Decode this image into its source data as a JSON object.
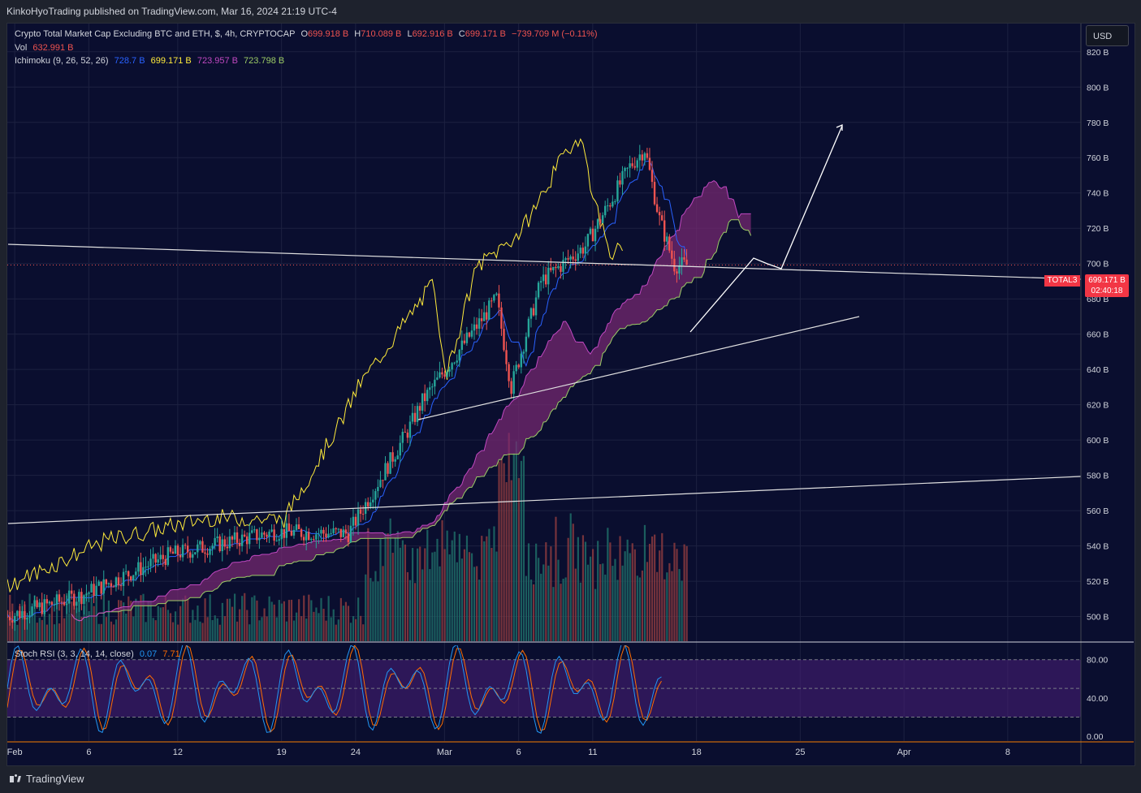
{
  "header": {
    "published": "KinkoHyoTrading published on TradingView.com, Mar 16, 2024 21:19 UTC-4"
  },
  "legend": {
    "title": "Crypto Total Market Cap Excluding BTC and ETH, $, 4h, CRYPTOCAP",
    "o_label": "O",
    "o_value": "699.918 B",
    "h_label": "H",
    "h_value": "710.089 B",
    "l_label": "L",
    "l_value": "692.916 B",
    "c_label": "C",
    "c_value": "699.171 B",
    "change": "−739.709 M (−0.11%)",
    "vol_label": "Vol",
    "vol_value": "632.991 B",
    "ichimoku_label": "Ichimoku (9, 26, 52, 26)",
    "ichi_v1": "728.7 B",
    "ichi_v2": "699.171 B",
    "ichi_v3": "723.957 B",
    "ichi_v4": "723.798 B",
    "stoch_label": "Stoch RSI (3, 3, 14, 14, close)",
    "stoch_k": "0.07",
    "stoch_d": "7.71"
  },
  "currency_button": "USD",
  "price_tag": {
    "symbol": "TOTAL3",
    "price": "699.171 B",
    "timer": "02:40:18"
  },
  "colors": {
    "background": "#0a0e2f",
    "up": "#26a69a",
    "down": "#ef5350",
    "tenkan": "#2962ff",
    "chikou": "#ffeb3b",
    "cloud": "#7a2a73",
    "stoch_k": "#2196f3",
    "stoch_d": "#ff6d00",
    "band": "#4a1f7a"
  },
  "chart_data": {
    "type": "candlestick",
    "title": "Crypto Total Market Cap Excluding BTC and ETH, $, 4h, CRYPTOCAP",
    "y_axis_unit": "B",
    "ylim": [
      486,
      836
    ],
    "y_ticks": [
      500,
      520,
      540,
      560,
      580,
      600,
      620,
      640,
      660,
      680,
      700,
      720,
      740,
      760,
      780,
      800,
      820
    ],
    "y_tick_labels": [
      "500 B",
      "520 B",
      "540 B",
      "560 B",
      "580 B",
      "600 B",
      "620 B",
      "640 B",
      "660 B",
      "680 B",
      "700 B",
      "720 B",
      "740 B",
      "760 B",
      "780 B",
      "800 B",
      "820 B"
    ],
    "x_tick_labels": [
      "Feb",
      "6",
      "12",
      "19",
      "24",
      "Mar",
      "6",
      "11",
      "18",
      "25",
      "Apr",
      "8"
    ],
    "series_close_approx": [
      {
        "date": "Feb 1",
        "close": 500
      },
      {
        "date": "Feb 6",
        "close": 512
      },
      {
        "date": "Feb 12",
        "close": 535
      },
      {
        "date": "Feb 19",
        "close": 548
      },
      {
        "date": "Feb 24",
        "close": 547
      },
      {
        "date": "Feb 28",
        "close": 605
      },
      {
        "date": "Mar 1",
        "close": 622
      },
      {
        "date": "Mar 5",
        "close": 680
      },
      {
        "date": "Mar 6",
        "close": 630
      },
      {
        "date": "Mar 8",
        "close": 690
      },
      {
        "date": "Mar 11",
        "close": 710
      },
      {
        "date": "Mar 13",
        "close": 755
      },
      {
        "date": "Mar 14",
        "close": 765
      },
      {
        "date": "Mar 15",
        "close": 725
      },
      {
        "date": "Mar 16",
        "close": 699.171
      }
    ],
    "last_price": 699.171,
    "stoch_rsi": {
      "label": "Stoch RSI (3, 3, 14, 14, close)",
      "ylim": [
        -5,
        95
      ],
      "y_ticks": [
        0,
        40,
        80
      ],
      "y_tick_labels": [
        "0.00",
        "40.00",
        "80.00"
      ],
      "band": [
        20,
        80
      ],
      "k_last": 0.07,
      "d_last": 7.71
    }
  }
}
